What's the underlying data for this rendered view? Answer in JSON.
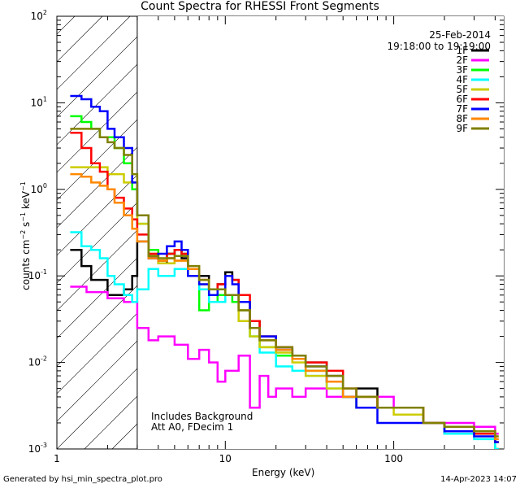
{
  "title": "Count Spectra for RHESSI Front Segments",
  "date_label": "25-Feb-2014",
  "time_label": "19:18:00 to 19:19:00",
  "footer_left": "Generated by hsi_min_spectra_plot.pro",
  "footer_right": "14-Apr-2023 14:07",
  "annotation": [
    "Includes Background",
    "Att A0, FDecim 1"
  ],
  "chart_data": {
    "type": "line",
    "title": "Count Spectra for RHESSI Front Segments",
    "xlabel": "Energy (keV)",
    "ylabel": "counts cm^-2 s^-1 keV^-1",
    "xscale": "log",
    "yscale": "log",
    "xlim": [
      1,
      450
    ],
    "ylim": [
      0.001,
      100
    ],
    "xticks": [
      {
        "v": 1,
        "label": "1"
      },
      {
        "v": 10,
        "label": "10"
      },
      {
        "v": 100,
        "label": "100"
      }
    ],
    "yticks": [
      {
        "e": -3
      },
      {
        "e": -2
      },
      {
        "e": -1
      },
      {
        "e": 0
      },
      {
        "e": 1
      },
      {
        "e": 2
      }
    ],
    "hatched_region": [
      1,
      3
    ],
    "legend_position": "top-right",
    "series": [
      {
        "name": "1F",
        "color": "#000000",
        "x": [
          1.2,
          1.4,
          1.6,
          1.8,
          2.0,
          2.2,
          2.5,
          2.8,
          3.0,
          3.5,
          4.0,
          4.5,
          5,
          5.5,
          6,
          7,
          8,
          9,
          10,
          11,
          12,
          14,
          16,
          20,
          25,
          30,
          40,
          50,
          60,
          80,
          100,
          150,
          200,
          300,
          400
        ],
        "y": [
          0.2,
          0.13,
          0.09,
          0.09,
          0.06,
          0.06,
          0.07,
          0.1,
          0.25,
          0.16,
          0.14,
          0.18,
          0.2,
          0.16,
          0.12,
          0.1,
          0.07,
          0.08,
          0.11,
          0.09,
          0.05,
          0.03,
          0.02,
          0.015,
          0.012,
          0.01,
          0.007,
          0.004,
          0.005,
          0.003,
          0.003,
          0.002,
          0.0015,
          0.0015,
          0.0012
        ]
      },
      {
        "name": "2F",
        "color": "#ff00ff",
        "x": [
          1.2,
          1.5,
          2.0,
          2.5,
          3.0,
          3.5,
          4,
          5,
          6,
          7,
          8,
          9,
          10,
          12,
          14,
          16,
          18,
          20,
          25,
          30,
          40,
          50,
          60,
          80,
          100,
          150,
          200,
          300,
          400
        ],
        "y": [
          0.075,
          0.065,
          0.055,
          0.05,
          0.025,
          0.018,
          0.02,
          0.016,
          0.011,
          0.014,
          0.01,
          0.006,
          0.008,
          0.012,
          0.003,
          0.007,
          0.004,
          0.005,
          0.004,
          0.005,
          0.004,
          0.004,
          0.003,
          0.004,
          0.003,
          0.002,
          0.002,
          0.0018,
          0.0015
        ]
      },
      {
        "name": "3F",
        "color": "#00ff00",
        "x": [
          1.2,
          1.4,
          1.6,
          1.8,
          2.0,
          2.2,
          2.5,
          2.8,
          3.0,
          3.5,
          4,
          4.5,
          5,
          5.5,
          6,
          7,
          8,
          9,
          10,
          11,
          12,
          14,
          16,
          20,
          25,
          30,
          40,
          50,
          60,
          80,
          100,
          150,
          200,
          300,
          400
        ],
        "y": [
          7,
          6,
          5,
          4,
          4,
          3,
          2,
          1,
          0.4,
          0.2,
          0.15,
          0.18,
          0.2,
          0.18,
          0.1,
          0.04,
          0.05,
          0.06,
          0.06,
          0.05,
          0.04,
          0.02,
          0.015,
          0.012,
          0.011,
          0.008,
          0.006,
          0.004,
          0.003,
          0.003,
          0.003,
          0.002,
          0.0018,
          0.0015,
          0.001
        ]
      },
      {
        "name": "4F",
        "color": "#00ffff",
        "x": [
          1.2,
          1.4,
          1.6,
          1.8,
          2.0,
          2.2,
          2.5,
          2.8,
          3.0,
          3.5,
          4,
          4.5,
          5,
          6,
          7,
          8,
          9,
          10,
          12,
          14,
          16,
          20,
          25,
          30,
          40,
          50,
          60,
          80,
          100,
          150,
          200,
          300,
          400
        ],
        "y": [
          0.32,
          0.22,
          0.2,
          0.16,
          0.1,
          0.08,
          0.06,
          0.05,
          0.07,
          0.12,
          0.1,
          0.1,
          0.12,
          0.1,
          0.07,
          0.05,
          0.05,
          0.06,
          0.04,
          0.02,
          0.013,
          0.009,
          0.008,
          0.007,
          0.005,
          0.004,
          0.003,
          0.003,
          0.003,
          0.002,
          0.0015,
          0.0013,
          0.001
        ]
      },
      {
        "name": "5F",
        "color": "#cccc00",
        "x": [
          1.2,
          1.5,
          2.0,
          2.5,
          3.0,
          3.5,
          4,
          5,
          6,
          7,
          8,
          9,
          10,
          12,
          14,
          16,
          20,
          25,
          30,
          40,
          50,
          60,
          80,
          100,
          150,
          200,
          300,
          400
        ],
        "y": [
          1.8,
          1.8,
          1.5,
          1.2,
          0.4,
          0.18,
          0.14,
          0.15,
          0.12,
          0.08,
          0.06,
          0.07,
          0.06,
          0.03,
          0.02,
          0.015,
          0.013,
          0.01,
          0.007,
          0.005,
          0.004,
          0.003,
          0.003,
          0.0025,
          0.002,
          0.0018,
          0.0015,
          0.0012
        ]
      },
      {
        "name": "6F",
        "color": "#ff0000",
        "x": [
          1.2,
          1.4,
          1.6,
          1.8,
          2.0,
          2.2,
          2.5,
          2.8,
          3.0,
          3.5,
          4,
          4.5,
          5,
          5.5,
          6,
          7,
          8,
          9,
          10,
          11,
          12,
          14,
          16,
          20,
          25,
          30,
          40,
          50,
          60,
          80,
          100,
          150,
          200,
          300,
          400
        ],
        "y": [
          4.5,
          3.0,
          2.0,
          1.6,
          1.0,
          0.8,
          0.6,
          0.45,
          0.3,
          0.18,
          0.15,
          0.18,
          0.2,
          0.18,
          0.12,
          0.09,
          0.07,
          0.08,
          0.1,
          0.09,
          0.06,
          0.03,
          0.02,
          0.015,
          0.012,
          0.01,
          0.008,
          0.005,
          0.004,
          0.003,
          0.003,
          0.002,
          0.0018,
          0.0015,
          0.0012
        ]
      },
      {
        "name": "7F",
        "color": "#0000ff",
        "x": [
          1.2,
          1.4,
          1.6,
          1.8,
          2.0,
          2.2,
          2.5,
          2.8,
          3.0,
          3.5,
          4,
          4.5,
          5,
          5.5,
          6,
          7,
          8,
          9,
          10,
          11,
          12,
          14,
          16,
          20,
          25,
          30,
          40,
          50,
          60,
          80,
          100,
          150,
          200,
          300,
          400
        ],
        "y": [
          12,
          11,
          9,
          8,
          5,
          4,
          3,
          1.2,
          0.5,
          0.16,
          0.18,
          0.22,
          0.25,
          0.2,
          0.1,
          0.08,
          0.06,
          0.07,
          0.1,
          0.08,
          0.05,
          0.025,
          0.02,
          0.014,
          0.011,
          0.009,
          0.006,
          0.004,
          0.003,
          0.002,
          0.002,
          0.002,
          0.0016,
          0.0014,
          0.0012
        ]
      },
      {
        "name": "8F",
        "color": "#ff8800",
        "x": [
          1.2,
          1.4,
          1.6,
          1.8,
          2.0,
          2.2,
          2.5,
          2.8,
          3.0,
          3.5,
          4,
          4.5,
          5,
          6,
          7,
          8,
          9,
          10,
          12,
          14,
          16,
          20,
          25,
          30,
          40,
          50,
          60,
          80,
          100,
          150,
          200,
          300,
          400
        ],
        "y": [
          1.5,
          1.4,
          1.2,
          1.1,
          1.0,
          0.7,
          0.5,
          0.35,
          0.25,
          0.16,
          0.15,
          0.16,
          0.15,
          0.12,
          0.09,
          0.07,
          0.07,
          0.06,
          0.04,
          0.025,
          0.018,
          0.014,
          0.011,
          0.008,
          0.006,
          0.004,
          0.004,
          0.003,
          0.003,
          0.002,
          0.0018,
          0.0016,
          0.0013
        ]
      },
      {
        "name": "9F",
        "color": "#808000",
        "x": [
          1.2,
          1.4,
          1.6,
          1.8,
          2.0,
          2.2,
          2.5,
          2.8,
          3.0,
          3.5,
          4,
          4.5,
          5,
          6,
          7,
          8,
          9,
          10,
          12,
          14,
          16,
          20,
          25,
          30,
          40,
          50,
          60,
          80,
          100,
          150,
          200,
          300,
          400
        ],
        "y": [
          5,
          5,
          5,
          4,
          3.5,
          3,
          2.5,
          1.5,
          0.5,
          0.17,
          0.16,
          0.16,
          0.17,
          0.13,
          0.09,
          0.07,
          0.07,
          0.06,
          0.04,
          0.025,
          0.018,
          0.015,
          0.012,
          0.009,
          0.007,
          0.005,
          0.004,
          0.003,
          0.003,
          0.002,
          0.0018,
          0.0016,
          0.0014
        ]
      }
    ]
  }
}
